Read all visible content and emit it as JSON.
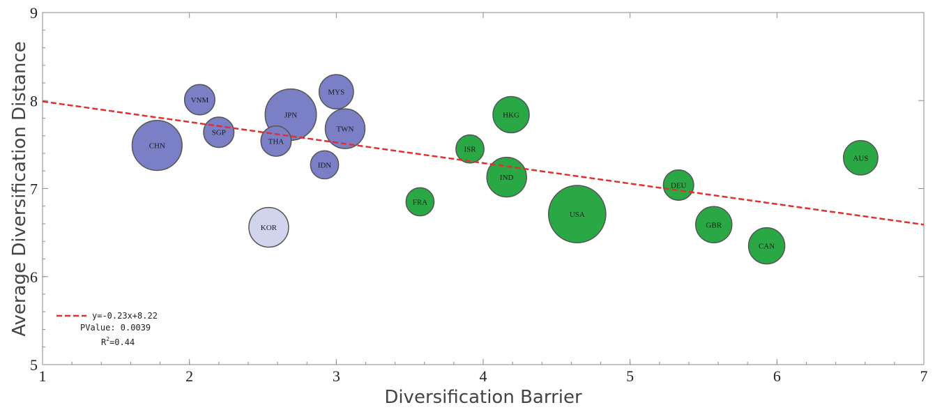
{
  "chart_data": {
    "type": "scatter",
    "xlabel": "Diversification Barrier",
    "ylabel": "Average Diversification Distance",
    "xlim": [
      1,
      7
    ],
    "ylim": [
      5,
      9
    ],
    "x_ticks": [
      1,
      2,
      3,
      4,
      5,
      6,
      7
    ],
    "y_ticks": [
      5,
      6,
      7,
      8,
      9
    ],
    "grid": false,
    "legend_position": "bottom-left",
    "colors": {
      "blue": "#7a7fc6",
      "light": "#d2d3ec",
      "green": "#2aa845",
      "stroke": "#555555",
      "trend": "#e0302f"
    },
    "points": [
      {
        "label": "CHN",
        "x": 1.78,
        "y": 7.49,
        "size": 1.9,
        "color": "blue"
      },
      {
        "label": "VNM",
        "x": 2.07,
        "y": 8.01,
        "size": 0.7,
        "color": "blue"
      },
      {
        "label": "SGP",
        "x": 2.2,
        "y": 7.64,
        "size": 0.7,
        "color": "blue"
      },
      {
        "label": "JPN",
        "x": 2.69,
        "y": 7.84,
        "size": 2.0,
        "color": "blue"
      },
      {
        "label": "THA",
        "x": 2.59,
        "y": 7.54,
        "size": 0.7,
        "color": "blue"
      },
      {
        "label": "KOR",
        "x": 2.54,
        "y": 6.56,
        "size": 1.2,
        "color": "light"
      },
      {
        "label": "MYS",
        "x": 3.0,
        "y": 8.1,
        "size": 0.9,
        "color": "blue"
      },
      {
        "label": "TWN",
        "x": 3.06,
        "y": 7.68,
        "size": 1.2,
        "color": "blue"
      },
      {
        "label": "IDN",
        "x": 2.92,
        "y": 7.27,
        "size": 0.6,
        "color": "blue"
      },
      {
        "label": "FRA",
        "x": 3.57,
        "y": 6.85,
        "size": 0.6,
        "color": "green"
      },
      {
        "label": "ISR",
        "x": 3.91,
        "y": 7.45,
        "size": 0.6,
        "color": "green"
      },
      {
        "label": "HKG",
        "x": 4.19,
        "y": 7.84,
        "size": 1.0,
        "color": "green"
      },
      {
        "label": "IND",
        "x": 4.16,
        "y": 7.13,
        "size": 1.2,
        "color": "green"
      },
      {
        "label": "USA",
        "x": 4.64,
        "y": 6.71,
        "size": 2.5,
        "color": "green"
      },
      {
        "label": "DEU",
        "x": 5.33,
        "y": 7.04,
        "size": 0.7,
        "color": "green"
      },
      {
        "label": "GBR",
        "x": 5.57,
        "y": 6.59,
        "size": 1.0,
        "color": "green"
      },
      {
        "label": "CAN",
        "x": 5.93,
        "y": 6.35,
        "size": 1.0,
        "color": "green"
      },
      {
        "label": "AUS",
        "x": 6.57,
        "y": 7.35,
        "size": 0.9,
        "color": "green"
      }
    ],
    "trendline": {
      "x0": 1,
      "y0": 7.99,
      "x1": 7,
      "y1": 6.59
    },
    "annotation": {
      "equation": "y=-0.23x+8.22",
      "pvalue": "PValue: 0.0039",
      "r2_prefix": "R",
      "r2_sup": "2",
      "r2_suffix": "=0.44"
    }
  }
}
